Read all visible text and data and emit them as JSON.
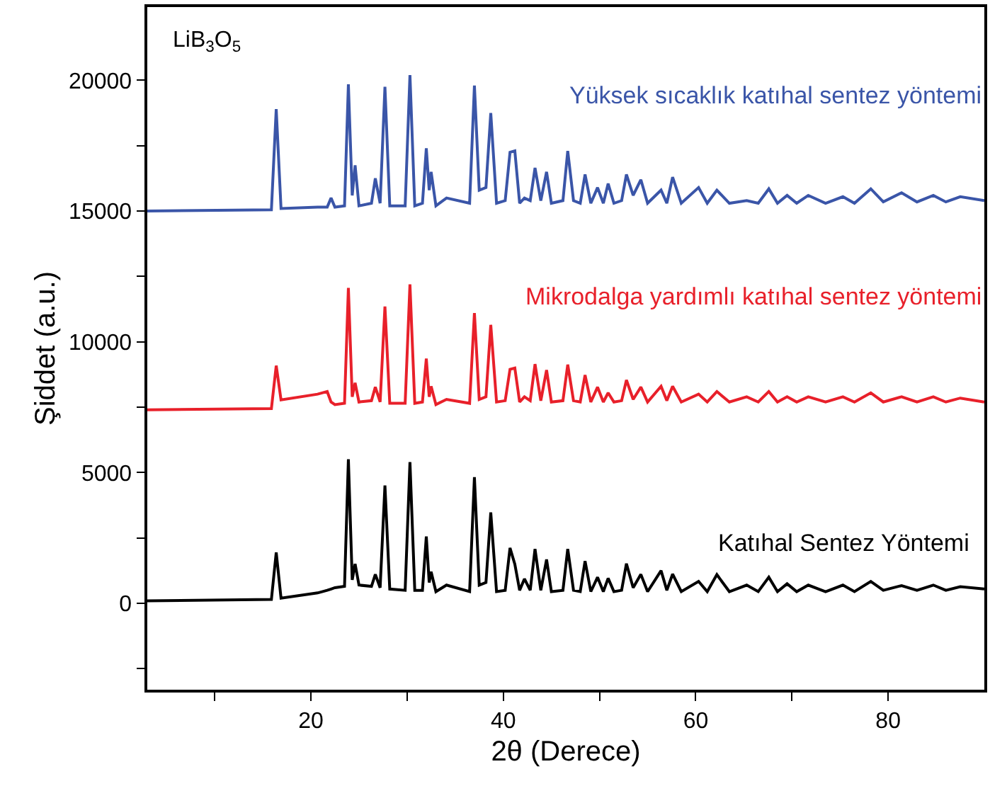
{
  "chart_data": {
    "type": "line",
    "xlabel": "2θ (Derece)",
    "ylabel": "Şiddet (a.u.)",
    "annotations": [
      "LiB$_{3}$O$_{5}$"
    ],
    "xlim": [
      3,
      90
    ],
    "xticks": [
      {
        "value": 10,
        "label": null
      },
      20,
      {
        "value": 30,
        "label": null
      },
      40,
      {
        "value": 50,
        "label": null
      },
      60,
      {
        "value": 70,
        "label": null
      },
      80
    ],
    "ylim": [
      -3300,
      22800
    ],
    "yticks": [
      {
        "value": -2500,
        "label": null
      },
      0,
      {
        "value": 2500,
        "label": null
      },
      5000,
      {
        "value": 7500,
        "label": null
      },
      10000,
      {
        "value": 12500,
        "label": null
      },
      15000,
      {
        "value": 17500,
        "label": null
      },
      20000
    ],
    "legend": false,
    "marker": "none",
    "line_style": "solid",
    "x": [
      3,
      15.9,
      16.4,
      16.9,
      20.7,
      21.7,
      22.1,
      22.5,
      23.5,
      23.9,
      24.3,
      24.6,
      25.0,
      26.3,
      26.7,
      27.2,
      27.7,
      28.2,
      29.8,
      30.3,
      30.8,
      31.6,
      32.0,
      32.3,
      32.5,
      33.0,
      34.1,
      36.5,
      37.0,
      37.5,
      38.2,
      38.7,
      39.3,
      40.2,
      40.7,
      41.2,
      41.7,
      42.2,
      42.8,
      43.3,
      43.9,
      44.5,
      45.0,
      46.2,
      46.7,
      47.3,
      48.0,
      48.5,
      49.1,
      49.8,
      50.4,
      50.9,
      51.5,
      52.3,
      52.8,
      53.5,
      54.3,
      55.0,
      56.4,
      57.0,
      57.6,
      58.5,
      60.3,
      61.2,
      62.2,
      63.5,
      65.3,
      66.5,
      67.6,
      68.5,
      69.5,
      70.5,
      71.7,
      73.5,
      75.3,
      76.5,
      78.2,
      79.5,
      81.4,
      83,
      84.7,
      86,
      87.5,
      90
    ],
    "series": [
      {
        "name": "Yüksek sıcaklık katıhal sentez yöntemi",
        "color": "#3a55a8",
        "values": [
          15000,
          15050,
          18900,
          15100,
          15150,
          15150,
          15500,
          15150,
          15200,
          19850,
          15600,
          16750,
          15200,
          15300,
          16250,
          15300,
          19750,
          15200,
          15200,
          20200,
          15200,
          15300,
          17400,
          15800,
          16500,
          15200,
          15500,
          15300,
          19800,
          15800,
          15900,
          18750,
          15300,
          15400,
          17250,
          17300,
          15300,
          15500,
          15400,
          16650,
          15400,
          16500,
          15300,
          15400,
          17300,
          15400,
          15300,
          16400,
          15300,
          15900,
          15300,
          16050,
          15300,
          15400,
          16400,
          15600,
          16200,
          15300,
          15800,
          15300,
          16300,
          15300,
          15900,
          15300,
          15800,
          15300,
          15400,
          15300,
          15850,
          15300,
          15600,
          15300,
          15600,
          15300,
          15550,
          15300,
          15850,
          15350,
          15700,
          15350,
          15600,
          15350,
          15550,
          15400
        ]
      },
      {
        "name": "Mikrodalga yardımlı katıhal sentez yöntemi",
        "color": "#e8202a",
        "values": [
          7400,
          7450,
          9090,
          7780,
          8000,
          8100,
          7700,
          7600,
          7650,
          12060,
          7900,
          8430,
          7700,
          7750,
          8270,
          7700,
          11350,
          7650,
          7650,
          12200,
          7650,
          7700,
          9360,
          7900,
          8300,
          7600,
          7800,
          7650,
          11100,
          7800,
          7900,
          10650,
          7700,
          7750,
          8950,
          9000,
          7700,
          7900,
          7750,
          9150,
          7750,
          8920,
          7700,
          7750,
          9130,
          7750,
          7700,
          8730,
          7700,
          8270,
          7700,
          8050,
          7700,
          7750,
          8540,
          7800,
          8270,
          7700,
          8300,
          7750,
          8300,
          7700,
          8000,
          7700,
          8100,
          7700,
          7900,
          7700,
          8100,
          7700,
          7900,
          7700,
          7900,
          7700,
          7900,
          7700,
          8050,
          7700,
          7900,
          7700,
          7900,
          7700,
          7850,
          7700
        ]
      },
      {
        "name": "Katıhal Sentez Yöntemi",
        "color": "#000000",
        "values": [
          100,
          150,
          1950,
          200,
          400,
          500,
          550,
          600,
          650,
          5510,
          900,
          1510,
          700,
          650,
          1110,
          600,
          4510,
          550,
          500,
          5400,
          500,
          500,
          2560,
          800,
          1210,
          450,
          700,
          450,
          4830,
          700,
          800,
          3480,
          450,
          500,
          2120,
          1500,
          500,
          940,
          500,
          2080,
          500,
          1680,
          450,
          500,
          2080,
          500,
          450,
          1620,
          450,
          1000,
          450,
          960,
          450,
          500,
          1520,
          600,
          1110,
          450,
          1250,
          500,
          1120,
          450,
          840,
          450,
          1100,
          450,
          700,
          450,
          1000,
          450,
          750,
          450,
          700,
          450,
          700,
          450,
          840,
          500,
          680,
          500,
          700,
          500,
          640,
          550
        ]
      }
    ]
  }
}
